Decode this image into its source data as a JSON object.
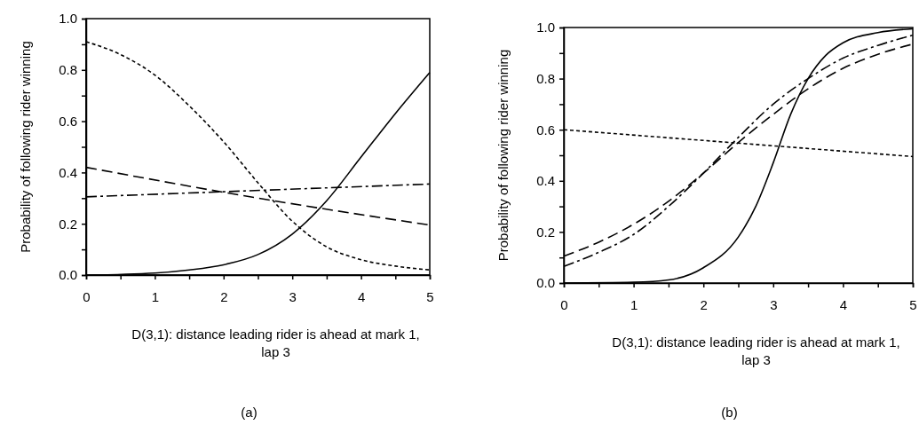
{
  "chart_data": [
    {
      "type": "line",
      "xlabel": "D(3,1): distance leading rider is ahead at mark 1, lap 3",
      "ylabel": "Probability of following rider winning",
      "annotations": [
        "(a)"
      ],
      "xlim": [
        0,
        5
      ],
      "ylim": [
        0,
        1
      ],
      "xticks": [
        0,
        {
          "value": 0.5,
          "label": null
        },
        1,
        {
          "value": 1.5,
          "label": null
        },
        2,
        {
          "value": 2.5,
          "label": null
        },
        3,
        {
          "value": 3.5,
          "label": null
        },
        4,
        {
          "value": 4.5,
          "label": null
        },
        5
      ],
      "yticks": [
        {
          "value": 0,
          "label": "0.0"
        },
        {
          "value": 0.1,
          "label": null
        },
        0.2,
        {
          "value": 0.3,
          "label": null
        },
        0.4,
        {
          "value": 0.5,
          "label": null
        },
        0.6,
        {
          "value": 0.7,
          "label": null
        },
        0.8,
        {
          "value": 0.9,
          "label": null
        },
        {
          "value": 1,
          "label": "1.0"
        }
      ],
      "series": [
        {
          "color": "#000000",
          "line_style": "solid",
          "x": [
            0,
            1,
            1.5,
            2,
            2.5,
            3,
            3.5,
            4,
            4.5,
            5
          ],
          "values": [
            0,
            0.008,
            0.02,
            0.04,
            0.08,
            0.16,
            0.29,
            0.46,
            0.63,
            0.79
          ]
        },
        {
          "color": "#000000",
          "line_style": "dotted",
          "x": [
            0,
            0.5,
            1,
            1.5,
            2,
            2.5,
            3,
            3.5,
            4,
            4.5,
            5
          ],
          "values": [
            0.91,
            0.86,
            0.78,
            0.66,
            0.52,
            0.36,
            0.21,
            0.11,
            0.06,
            0.035,
            0.02
          ]
        },
        {
          "color": "#000000",
          "line_style": "dashed",
          "x": [
            0,
            2.5,
            5
          ],
          "values": [
            0.42,
            0.3,
            0.195
          ]
        },
        {
          "color": "#000000",
          "line_style": "dashdot",
          "x": [
            0,
            5
          ],
          "values": [
            0.305,
            0.355
          ]
        },
        {
          "color": "#000000",
          "line_style": "solid",
          "x": [
            0,
            0,
            5
          ],
          "values": [
            1,
            0,
            0
          ]
        }
      ]
    },
    {
      "type": "line",
      "xlabel": "D(3,1): distance leading rider is ahead at mark 1, lap 3",
      "ylabel": "Probability of following rider winning",
      "annotations": [
        "(b)"
      ],
      "xlim": [
        0,
        5
      ],
      "ylim": [
        0,
        1
      ],
      "xticks": [
        0,
        {
          "value": 0.5,
          "label": null
        },
        1,
        {
          "value": 1.5,
          "label": null
        },
        2,
        {
          "value": 2.5,
          "label": null
        },
        3,
        {
          "value": 3.5,
          "label": null
        },
        4,
        {
          "value": 4.5,
          "label": null
        },
        5
      ],
      "yticks": [
        {
          "value": 0,
          "label": "0.0"
        },
        {
          "value": 0.1,
          "label": null
        },
        0.2,
        {
          "value": 0.3,
          "label": null
        },
        0.4,
        {
          "value": 0.5,
          "label": null
        },
        0.6,
        {
          "value": 0.7,
          "label": null
        },
        0.8,
        {
          "value": 0.9,
          "label": null
        },
        {
          "value": 1,
          "label": "1.0"
        }
      ],
      "series": [
        {
          "color": "#000000",
          "line_style": "solid",
          "x": [
            0,
            1,
            1.5,
            2,
            2.5,
            2.75,
            3,
            3.25,
            3.5,
            3.75,
            4,
            4.5,
            5
          ],
          "values": [
            0,
            0.003,
            0.012,
            0.06,
            0.18,
            0.3,
            0.47,
            0.66,
            0.8,
            0.89,
            0.94,
            0.98,
            0.995
          ]
        },
        {
          "color": "#000000",
          "line_style": "dashed",
          "x": [
            0,
            0.5,
            1,
            1.5,
            2,
            2.5,
            3,
            3.5,
            4,
            4.5,
            5
          ],
          "values": [
            0.105,
            0.16,
            0.23,
            0.32,
            0.43,
            0.55,
            0.66,
            0.76,
            0.84,
            0.895,
            0.935
          ]
        },
        {
          "color": "#000000",
          "line_style": "dashdot",
          "x": [
            0,
            0.5,
            1,
            1.5,
            2,
            2.5,
            3,
            3.5,
            4,
            4.5,
            5
          ],
          "values": [
            0.065,
            0.12,
            0.19,
            0.3,
            0.43,
            0.57,
            0.7,
            0.8,
            0.88,
            0.93,
            0.97
          ]
        },
        {
          "color": "#000000",
          "line_style": "dotted",
          "x": [
            0,
            5
          ],
          "values": [
            0.6,
            0.495
          ]
        }
      ]
    }
  ]
}
